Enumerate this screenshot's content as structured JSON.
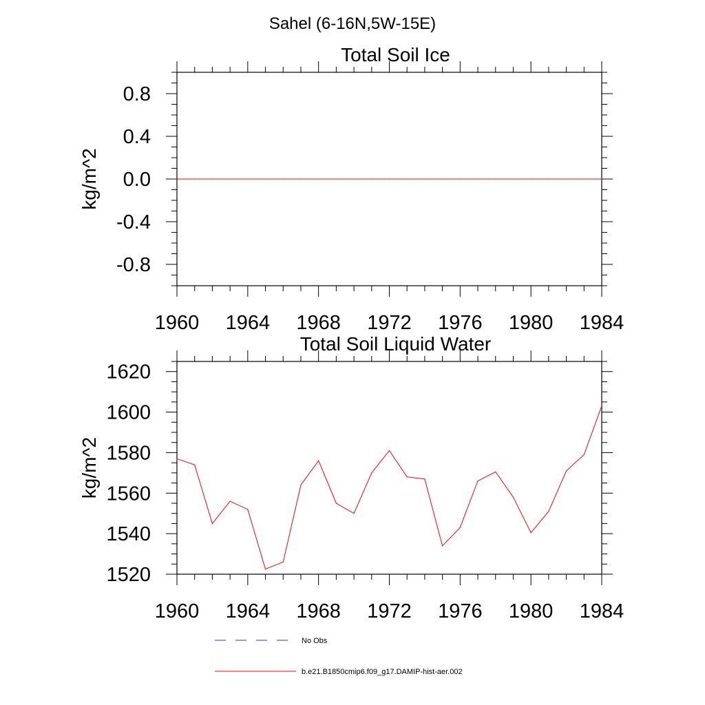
{
  "figure": {
    "title": "Sahel (6-16N,5W-15E)"
  },
  "chart_data": [
    {
      "type": "line",
      "title": "Total Soil Ice",
      "xlabel": "",
      "ylabel": "kg/m^2",
      "xlim": [
        1960,
        1984
      ],
      "ylim": [
        -1.0,
        1.0
      ],
      "xticks": [
        1960,
        1964,
        1968,
        1972,
        1976,
        1980,
        1984
      ],
      "yticks": [
        -0.8,
        -0.4,
        0.0,
        0.4,
        0.8
      ],
      "ytick_labels": [
        "-0.8",
        "-0.4",
        "0.0",
        "0.4",
        "0.8"
      ],
      "grid": false,
      "series": [
        {
          "color": "#ff0000",
          "x": [
            1960,
            1961,
            1962,
            1963,
            1964,
            1965,
            1966,
            1967,
            1968,
            1969,
            1970,
            1971,
            1972,
            1973,
            1974,
            1975,
            1976,
            1977,
            1978,
            1979,
            1980,
            1981,
            1982,
            1983,
            1984
          ],
          "values": [
            0,
            0,
            0,
            0,
            0,
            0,
            0,
            0,
            0,
            0,
            0,
            0,
            0,
            0,
            0,
            0,
            0,
            0,
            0,
            0,
            0,
            0,
            0,
            0,
            0
          ]
        }
      ]
    },
    {
      "type": "line",
      "title": "Total Soil Liquid Water",
      "xlabel": "",
      "ylabel": "kg/m^2",
      "xlim": [
        1960,
        1984
      ],
      "ylim": [
        1520,
        1625
      ],
      "xticks": [
        1960,
        1964,
        1968,
        1972,
        1976,
        1980,
        1984
      ],
      "yticks": [
        1520,
        1540,
        1560,
        1580,
        1600,
        1620
      ],
      "ytick_labels": [
        "1520",
        "1540",
        "1560",
        "1580",
        "1600",
        "1620"
      ],
      "grid": false,
      "series": [
        {
          "color": "#ff0000",
          "x": [
            1960,
            1961,
            1962,
            1963,
            1964,
            1965,
            1966,
            1967,
            1968,
            1969,
            1970,
            1971,
            1972,
            1973,
            1974,
            1975,
            1976,
            1977,
            1978,
            1979,
            1980,
            1981,
            1982,
            1983,
            1984
          ],
          "values": [
            1577,
            1574,
            1545,
            1556,
            1552,
            1522.5,
            1526,
            1564,
            1576,
            1555,
            1550,
            1570,
            1581,
            1568,
            1567,
            1534,
            1543,
            1566,
            1570.5,
            1558,
            1540.5,
            1551,
            1571,
            1579,
            1603
          ]
        }
      ]
    }
  ],
  "legend": {
    "placement": "bottom",
    "entries": [
      {
        "label": "No Obs",
        "color": "#2e3b9c",
        "style": "dashed"
      },
      {
        "label": "b.e21.B1850cmip6.f09_g17.DAMIP-hist-aer.002",
        "color": "#ff0000",
        "style": "solid"
      }
    ]
  }
}
